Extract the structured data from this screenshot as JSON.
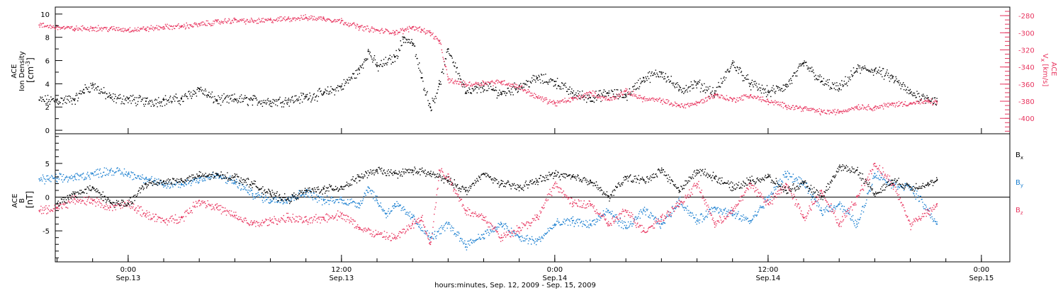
{
  "colors": {
    "black": "#000000",
    "pink": "#e8355f",
    "blue": "#1a7fd0"
  },
  "chart_data": [
    {
      "type": "scatter",
      "panel": "plasma",
      "ylabel_left": {
        "mission": "ACE",
        "quantity": "Ion Density",
        "unit": "[cm",
        "unit_exp": "-3",
        "unit_end": "]"
      },
      "ylabel_right": {
        "mission": "ACE",
        "quantity": "V",
        "sub": "x",
        "unit": "[km/s]"
      },
      "ylim_left": [
        -0.3,
        10.6
      ],
      "ylim_right": [
        -418,
        -270
      ],
      "yticks_left": [
        "0",
        "2",
        "4",
        "6",
        "8",
        "10"
      ],
      "yticks_right": [
        "-280",
        "-300",
        "-320",
        "-340",
        "-360",
        "-380",
        "-400"
      ],
      "series": [
        {
          "axis": "left",
          "color": "black",
          "x": [
            -5,
            -4,
            -3,
            -2.5,
            -2,
            -1,
            0,
            1,
            2,
            3,
            4,
            4.5,
            5,
            6,
            7,
            8,
            9,
            10,
            11,
            12,
            13,
            13.5,
            14,
            15,
            15.5,
            16,
            16.5,
            17,
            17.5,
            18,
            19,
            20,
            21,
            22,
            23,
            24,
            25,
            26,
            27,
            28,
            29,
            30,
            31,
            32,
            33,
            34,
            35,
            36,
            37,
            38,
            39,
            40,
            41,
            42,
            43,
            44,
            45,
            45.5
          ],
          "y": [
            2.6,
            2.6,
            2.7,
            3.5,
            3.9,
            2.8,
            2.7,
            2.5,
            2.6,
            2.7,
            3.6,
            3.0,
            2.6,
            2.7,
            2.6,
            2.5,
            2.6,
            2.9,
            3.2,
            3.8,
            5.2,
            6.8,
            5.5,
            6.3,
            8.0,
            7.5,
            4.5,
            2.0,
            4.0,
            7.0,
            3.2,
            3.8,
            3.2,
            3.8,
            4.5,
            4.2,
            3.2,
            2.8,
            3.2,
            3.0,
            4.5,
            5.0,
            3.5,
            4.0,
            3.2,
            5.8,
            4.0,
            3.3,
            3.8,
            5.8,
            4.2,
            3.6,
            5.3,
            5.2,
            4.5,
            3.2,
            2.8,
            2.5
          ]
        },
        {
          "axis": "right",
          "color": "pink",
          "x": [
            -5,
            -4,
            -3,
            -2,
            -1,
            0,
            1,
            2,
            3,
            4,
            5,
            6,
            7,
            8,
            9,
            10,
            11,
            12,
            13,
            14,
            15,
            15.5,
            16,
            16.5,
            17,
            17.5,
            18,
            19,
            20,
            21,
            22,
            23,
            24,
            25,
            26,
            27,
            28,
            29,
            30,
            31,
            32,
            33,
            34,
            35,
            36,
            37,
            38,
            39,
            40,
            41,
            42,
            43,
            44,
            45,
            45.5
          ],
          "y": [
            -291,
            -293,
            -295,
            -294,
            -295,
            -296,
            -295,
            -293,
            -292,
            -290,
            -287,
            -285,
            -286,
            -285,
            -283,
            -282,
            -283,
            -286,
            -293,
            -297,
            -299,
            -297,
            -293,
            -296,
            -300,
            -310,
            -355,
            -360,
            -358,
            -357,
            -363,
            -375,
            -382,
            -377,
            -370,
            -378,
            -368,
            -377,
            -379,
            -385,
            -382,
            -372,
            -378,
            -373,
            -380,
            -385,
            -388,
            -392,
            -392,
            -386,
            -387,
            -383,
            -382,
            -380,
            -381
          ]
        }
      ]
    },
    {
      "type": "scatter",
      "panel": "magnetic_field",
      "ylabel": {
        "mission": "ACE",
        "quantity": "B",
        "unit": "[nT]"
      },
      "ylim": [
        -9.6,
        9.4
      ],
      "yticks": [
        "5",
        "0",
        "-5"
      ],
      "x_axis": {
        "major_ticks": [
          {
            "time": "0:00",
            "date": "Sep.13",
            "hour": 0
          },
          {
            "time": "12:00",
            "date": "Sep.13",
            "hour": 12
          },
          {
            "time": "0:00",
            "date": "Sep.14",
            "hour": 24
          },
          {
            "time": "12:00",
            "date": "Sep.14",
            "hour": 36
          },
          {
            "time": "0:00",
            "date": "Sep.15",
            "hour": 48
          }
        ],
        "xlim": [
          -4.1,
          49.6
        ],
        "title": "hours:minutes, Sep. 12, 2009 - Sep. 15, 2009"
      },
      "legend": [
        {
          "label": "B",
          "sub": "x",
          "color": "black"
        },
        {
          "label": "B",
          "sub": "y",
          "color": "blue"
        },
        {
          "label": "B",
          "sub": "z",
          "color": "pink"
        }
      ],
      "series": [
        {
          "name": "Bx",
          "color": "black",
          "x": [
            -4,
            -3,
            -2,
            -1,
            0,
            1,
            2,
            3,
            4,
            5,
            6,
            7,
            8,
            9,
            10,
            11,
            12,
            13,
            14,
            15,
            16,
            17,
            18,
            19,
            20,
            21,
            22,
            23,
            24,
            25,
            26,
            27,
            28,
            29,
            30,
            31,
            32,
            33,
            34,
            35,
            36,
            37,
            38,
            39,
            40,
            41,
            42,
            43,
            44,
            45,
            45.5
          ],
          "y": [
            -1,
            0.5,
            1.5,
            -0.8,
            -1,
            2,
            2.4,
            2.5,
            3.2,
            3.3,
            3.0,
            2.0,
            0.5,
            -0.3,
            1,
            1.2,
            1.5,
            3,
            4,
            3.5,
            4,
            3.5,
            2.5,
            1,
            3.5,
            2,
            1.5,
            2.5,
            3.5,
            3,
            2.5,
            0,
            3,
            2.5,
            4,
            1,
            4,
            3,
            1.5,
            2.5,
            3,
            1,
            2,
            0,
            4.5,
            4,
            0.5,
            2.5,
            1.5,
            2,
            2.5
          ]
        },
        {
          "name": "By",
          "color": "blue",
          "x": [
            -5,
            -4,
            -3,
            -2,
            -1,
            0,
            1,
            2,
            3,
            4,
            5,
            6,
            7,
            8,
            9,
            10,
            11,
            12,
            13,
            13.5,
            14,
            14.5,
            15,
            16,
            17,
            18,
            19,
            20,
            21,
            22,
            23,
            24,
            25,
            26,
            27,
            28,
            29,
            30,
            31,
            32,
            33,
            34,
            35,
            36,
            37,
            38,
            39,
            40,
            41,
            42,
            43,
            44,
            45,
            45.5
          ],
          "y": [
            2.7,
            2.8,
            3.0,
            3.5,
            4.0,
            3.5,
            2.8,
            1.8,
            2.0,
            2.8,
            3.2,
            2.2,
            0.5,
            -0.4,
            -0.2,
            0.8,
            -0.5,
            -0.4,
            -1,
            1.5,
            -0.5,
            -2.5,
            -1,
            -3,
            -6,
            -4,
            -7,
            -5.5,
            -4,
            -6,
            -6.5,
            -4,
            -3.5,
            -4,
            -2,
            -4.5,
            -2,
            -4,
            -0.5,
            -3.5,
            -1.5,
            -2.5,
            -3.5,
            0,
            3.5,
            2,
            -2,
            -1,
            -4,
            3.5,
            2,
            1.5,
            -2,
            -4
          ]
        },
        {
          "name": "Bz",
          "color": "pink",
          "x": [
            -5,
            -4,
            -3,
            -2,
            -1,
            0,
            1,
            2,
            3,
            4,
            5,
            6,
            7,
            8,
            9,
            10,
            11,
            12,
            13,
            14,
            15,
            16,
            16.5,
            17,
            17.5,
            18,
            19,
            20,
            21,
            22,
            23,
            24,
            25,
            26,
            27,
            28,
            29,
            30,
            31,
            32,
            33,
            34,
            35,
            36,
            37,
            38,
            39,
            40,
            41,
            42,
            43,
            44,
            45,
            45.5
          ],
          "y": [
            -2,
            -1.5,
            -0.3,
            -0.5,
            -1.5,
            -1,
            -2.5,
            -3.5,
            -3,
            -0.5,
            -1.5,
            -2.8,
            -4,
            -3.5,
            -3,
            -3.5,
            -3,
            -2.5,
            -4.5,
            -5.5,
            -6,
            -4,
            -3,
            -7,
            4,
            3,
            -2,
            -3,
            -6,
            -4.5,
            -3,
            2,
            -1,
            -1,
            -4,
            -2,
            -5,
            -3,
            -1,
            2,
            -4,
            -2,
            2,
            -1,
            2,
            -3,
            1,
            -4,
            0,
            5,
            2,
            -4,
            -2,
            -1
          ]
        }
      ]
    }
  ]
}
